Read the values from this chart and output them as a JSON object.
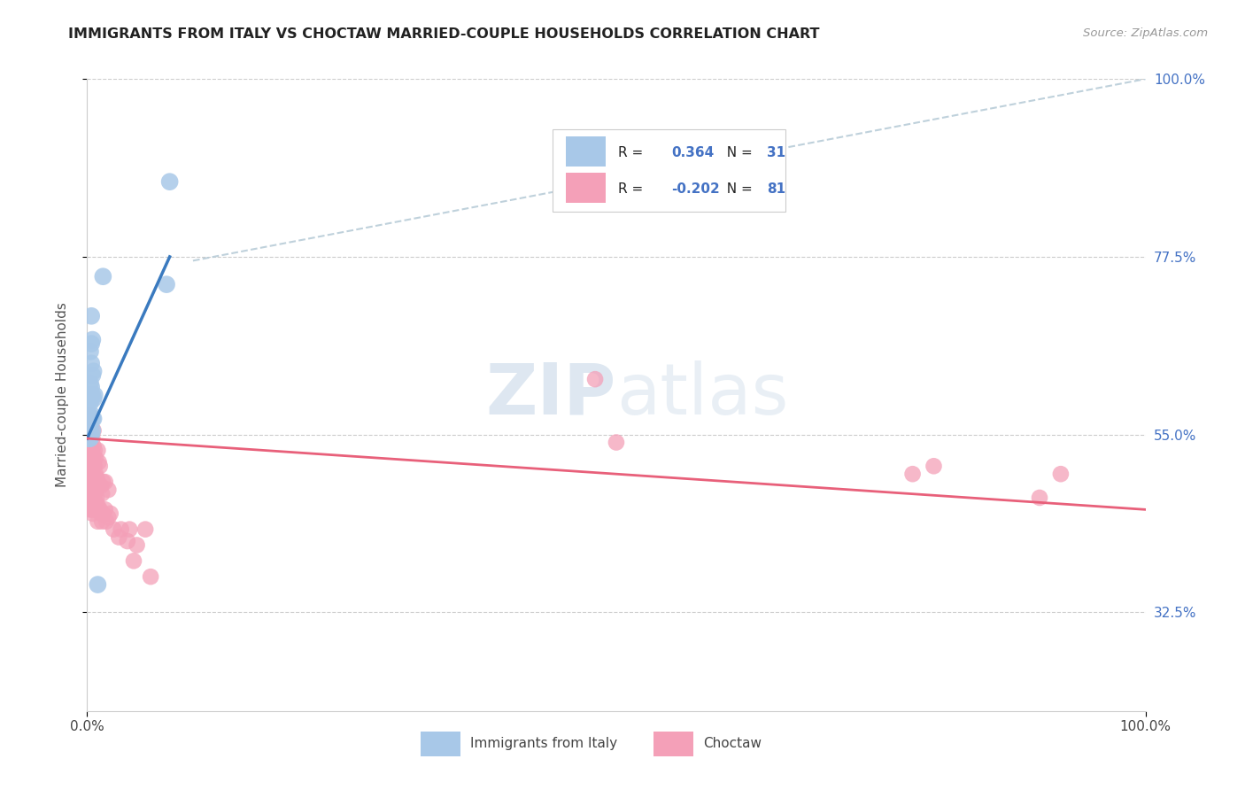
{
  "title": "IMMIGRANTS FROM ITALY VS CHOCTAW MARRIED-COUPLE HOUSEHOLDS CORRELATION CHART",
  "source": "Source: ZipAtlas.com",
  "ylabel": "Married-couple Households",
  "color_blue": "#a8c8e8",
  "color_pink": "#f4a0b8",
  "line_blue": "#3a7abf",
  "line_pink": "#e8607a",
  "line_dashed_color": "#b8ccd8",
  "watermark_color": "#c8d8e8",
  "legend_r1_val": "0.364",
  "legend_n1_val": "31",
  "legend_r2_val": "-0.202",
  "legend_n2_val": "81",
  "accent_blue": "#4472c4",
  "italy_x": [
    0.001,
    0.001,
    0.001,
    0.001,
    0.002,
    0.002,
    0.002,
    0.003,
    0.003,
    0.003,
    0.003,
    0.003,
    0.004,
    0.004,
    0.004,
    0.004,
    0.004,
    0.004,
    0.005,
    0.005,
    0.005,
    0.005,
    0.005,
    0.006,
    0.006,
    0.006,
    0.007,
    0.01,
    0.015,
    0.075,
    0.078
  ],
  "italy_y": [
    0.545,
    0.555,
    0.575,
    0.6,
    0.545,
    0.56,
    0.595,
    0.545,
    0.565,
    0.59,
    0.615,
    0.655,
    0.55,
    0.575,
    0.61,
    0.64,
    0.665,
    0.7,
    0.555,
    0.57,
    0.6,
    0.625,
    0.67,
    0.57,
    0.595,
    0.63,
    0.6,
    0.36,
    0.75,
    0.74,
    0.87
  ],
  "choctaw_x": [
    0.001,
    0.001,
    0.001,
    0.001,
    0.001,
    0.002,
    0.002,
    0.002,
    0.002,
    0.002,
    0.002,
    0.002,
    0.003,
    0.003,
    0.003,
    0.003,
    0.003,
    0.003,
    0.004,
    0.004,
    0.004,
    0.004,
    0.004,
    0.004,
    0.005,
    0.005,
    0.005,
    0.005,
    0.005,
    0.005,
    0.006,
    0.006,
    0.006,
    0.006,
    0.006,
    0.007,
    0.007,
    0.007,
    0.007,
    0.007,
    0.008,
    0.008,
    0.008,
    0.008,
    0.009,
    0.009,
    0.01,
    0.01,
    0.01,
    0.01,
    0.011,
    0.011,
    0.012,
    0.012,
    0.013,
    0.013,
    0.014,
    0.014,
    0.015,
    0.015,
    0.017,
    0.017,
    0.018,
    0.02,
    0.02,
    0.022,
    0.025,
    0.03,
    0.032,
    0.038,
    0.04,
    0.044,
    0.047,
    0.055,
    0.06,
    0.48,
    0.5,
    0.78,
    0.8,
    0.9,
    0.92
  ],
  "choctaw_y": [
    0.49,
    0.51,
    0.525,
    0.545,
    0.565,
    0.475,
    0.49,
    0.51,
    0.53,
    0.545,
    0.56,
    0.575,
    0.455,
    0.47,
    0.49,
    0.51,
    0.525,
    0.545,
    0.455,
    0.475,
    0.495,
    0.51,
    0.53,
    0.56,
    0.45,
    0.465,
    0.48,
    0.5,
    0.52,
    0.545,
    0.455,
    0.48,
    0.51,
    0.535,
    0.555,
    0.46,
    0.475,
    0.49,
    0.51,
    0.53,
    0.465,
    0.48,
    0.5,
    0.52,
    0.47,
    0.495,
    0.44,
    0.46,
    0.49,
    0.53,
    0.455,
    0.515,
    0.455,
    0.51,
    0.45,
    0.485,
    0.44,
    0.475,
    0.45,
    0.49,
    0.455,
    0.49,
    0.44,
    0.445,
    0.48,
    0.45,
    0.43,
    0.42,
    0.43,
    0.415,
    0.43,
    0.39,
    0.41,
    0.43,
    0.37,
    0.62,
    0.54,
    0.5,
    0.51,
    0.47,
    0.5
  ],
  "italy_line_x0": 0.0,
  "italy_line_y0": 0.545,
  "italy_line_x1": 0.078,
  "italy_line_y1": 0.775,
  "choctaw_line_x0": 0.0,
  "choctaw_line_y0": 0.545,
  "choctaw_line_x1": 1.0,
  "choctaw_line_y1": 0.455,
  "xlim": [
    0.0,
    1.0
  ],
  "ylim": [
    0.2,
    1.0
  ],
  "yticks": [
    0.325,
    0.55,
    0.775,
    1.0
  ],
  "ytick_labels": [
    "32.5%",
    "55.0%",
    "77.5%",
    "100.0%"
  ],
  "xtick_positions": [
    0.0,
    1.0
  ],
  "xtick_labels": [
    "0.0%",
    "100.0%"
  ]
}
